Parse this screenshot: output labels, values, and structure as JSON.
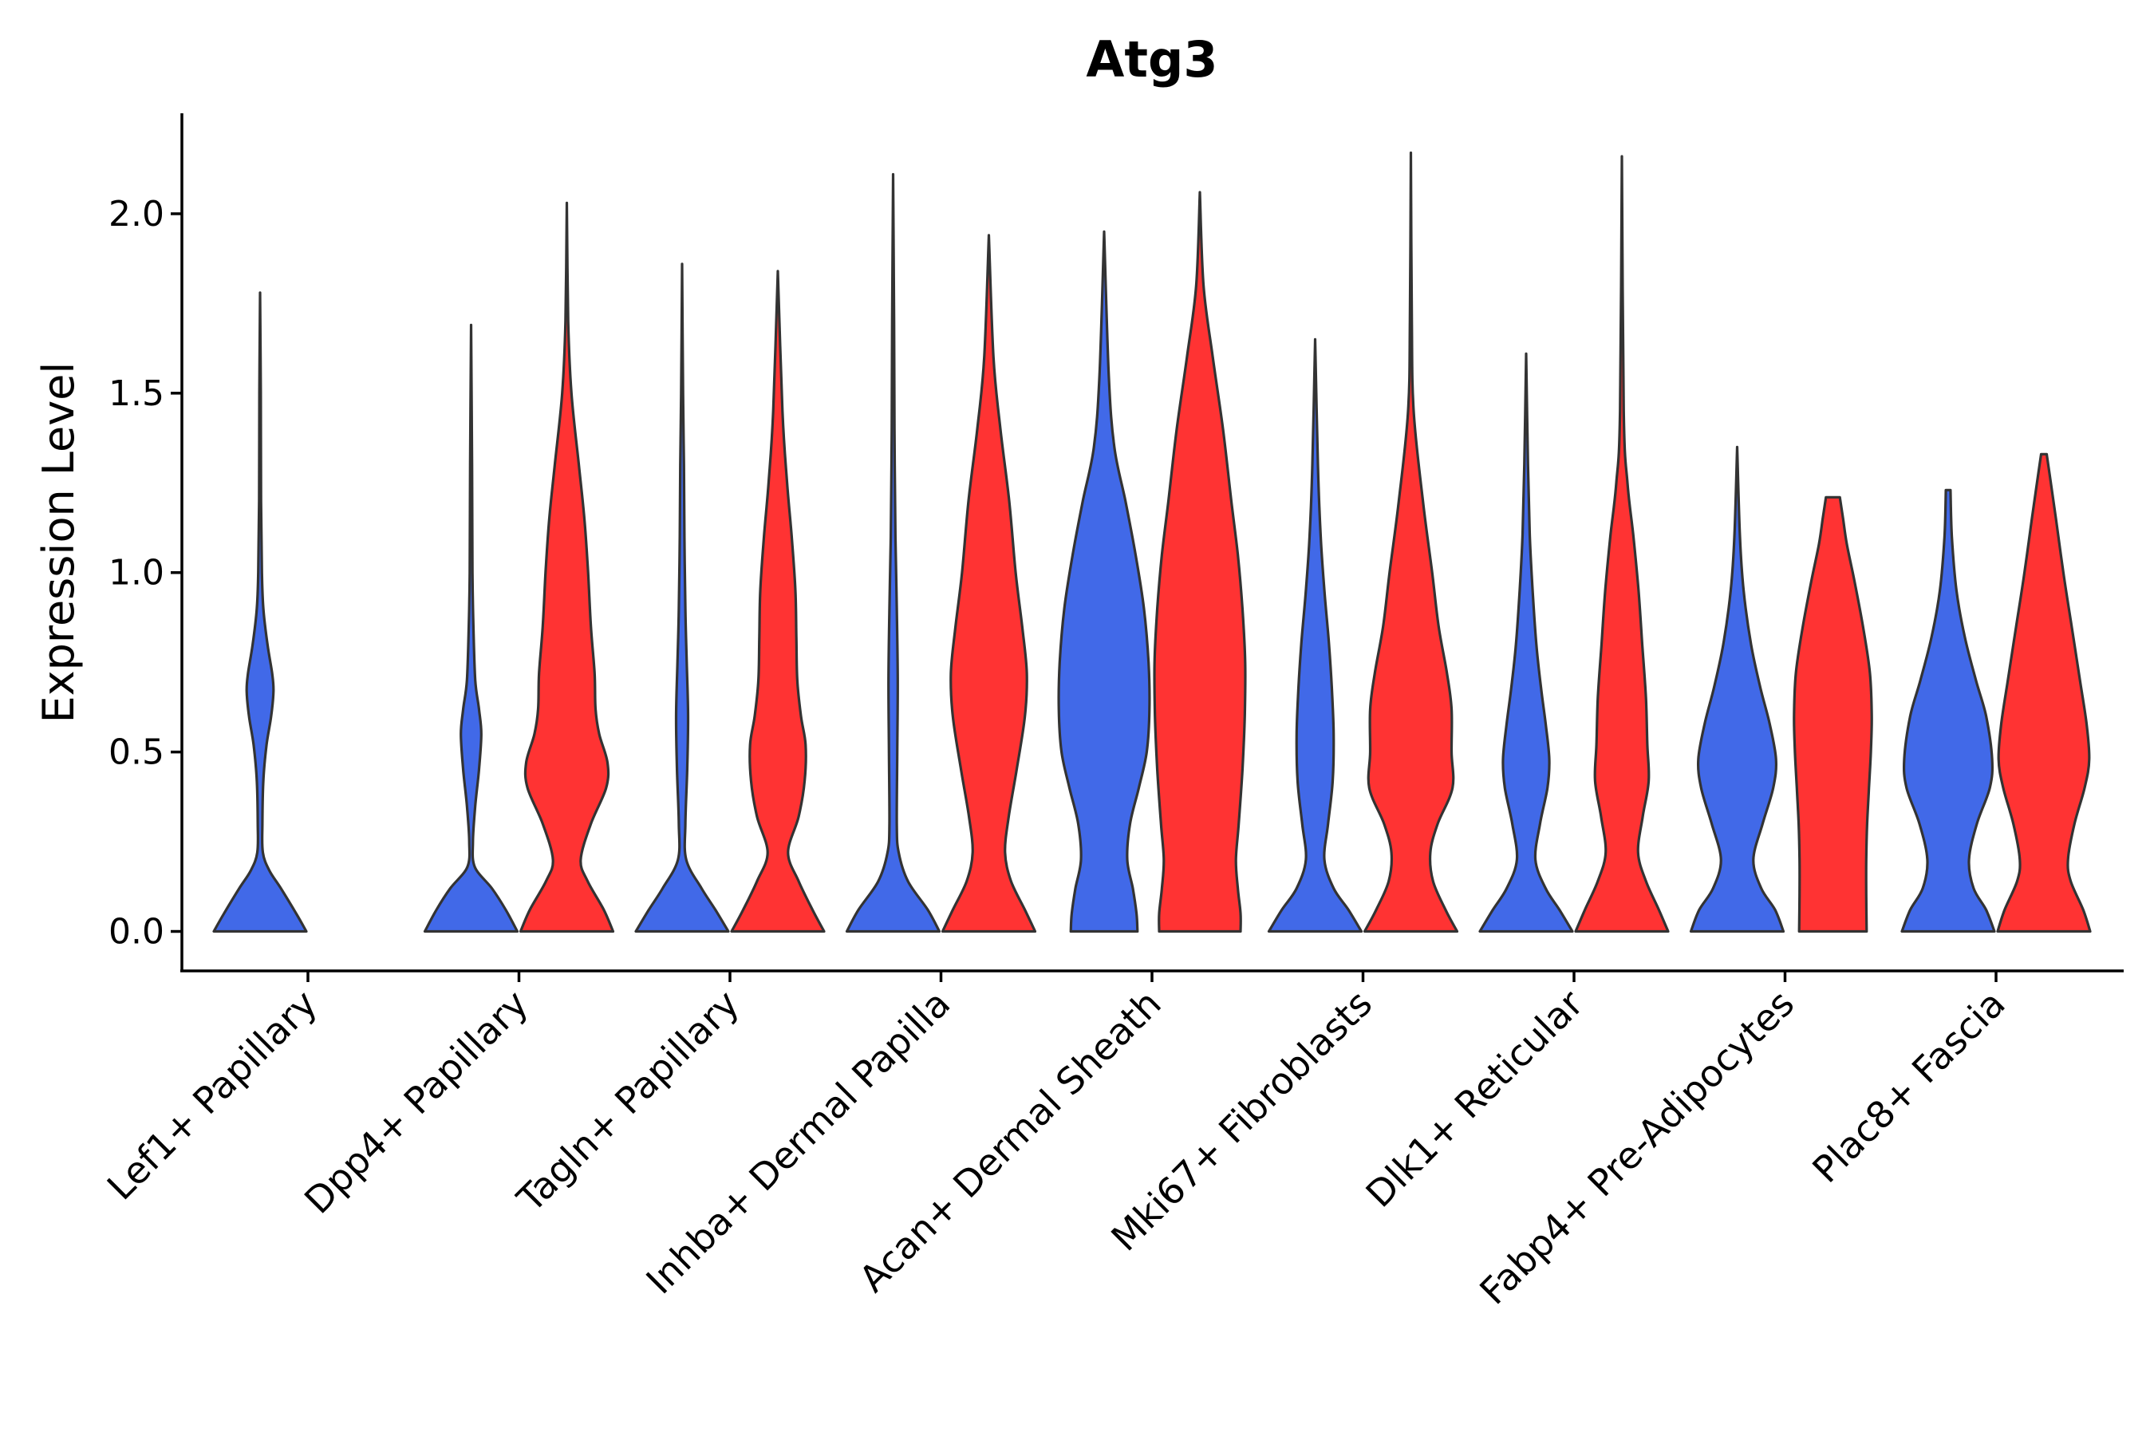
{
  "chart_data": {
    "type": "violin",
    "title": "Atg3",
    "xlabel": "",
    "ylabel": "Expression Level",
    "ylim": [
      -0.11,
      2.28
    ],
    "yticks": [
      0.0,
      0.5,
      1.0,
      1.5,
      2.0
    ],
    "ytick_labels": [
      "0.0",
      "0.5",
      "1.0",
      "1.5",
      "2.0"
    ],
    "grid": false,
    "legend": "none",
    "groups": [
      {
        "name": "group 1",
        "color": "#4169E8"
      },
      {
        "name": "group 2",
        "color": "#FF3333"
      }
    ],
    "categories": [
      "Lef1+ Papillary",
      "Dpp4+ Papillary",
      "Tagln+ Papillary",
      "Inhba+ Dermal Papilla",
      "Acan+ Dermal Sheath",
      "Mki67+ Fibroblasts",
      "Dlk1+ Reticular",
      "Fabp4+ Pre-Adipocytes",
      "Plac8+ Fascia"
    ],
    "violins": [
      {
        "category": "Lef1+ Papillary",
        "group": "group 1",
        "max": 1.78,
        "profile": [
          [
            0.0,
            1.0
          ],
          [
            0.05,
            0.78
          ],
          [
            0.12,
            0.45
          ],
          [
            0.17,
            0.2
          ],
          [
            0.22,
            0.06
          ],
          [
            0.3,
            0.05
          ],
          [
            0.42,
            0.07
          ],
          [
            0.52,
            0.14
          ],
          [
            0.6,
            0.24
          ],
          [
            0.67,
            0.29
          ],
          [
            0.72,
            0.26
          ],
          [
            0.8,
            0.16
          ],
          [
            0.9,
            0.07
          ],
          [
            1.0,
            0.04
          ],
          [
            1.2,
            0.02
          ],
          [
            1.5,
            0.015
          ],
          [
            1.78,
            0.0
          ]
        ]
      },
      {
        "category": "Dpp4+ Papillary",
        "group": "group 1",
        "max": 1.69,
        "profile": [
          [
            0.0,
            1.0
          ],
          [
            0.06,
            0.75
          ],
          [
            0.12,
            0.45
          ],
          [
            0.18,
            0.08
          ],
          [
            0.25,
            0.04
          ],
          [
            0.35,
            0.09
          ],
          [
            0.45,
            0.17
          ],
          [
            0.55,
            0.22
          ],
          [
            0.62,
            0.17
          ],
          [
            0.7,
            0.09
          ],
          [
            0.85,
            0.05
          ],
          [
            1.0,
            0.03
          ],
          [
            1.3,
            0.02
          ],
          [
            1.69,
            0.0
          ]
        ]
      },
      {
        "category": "Dpp4+ Papillary",
        "group": "group 2",
        "max": 2.03,
        "profile": [
          [
            0.0,
            1.0
          ],
          [
            0.06,
            0.8
          ],
          [
            0.14,
            0.45
          ],
          [
            0.2,
            0.3
          ],
          [
            0.3,
            0.52
          ],
          [
            0.4,
            0.85
          ],
          [
            0.47,
            0.88
          ],
          [
            0.55,
            0.7
          ],
          [
            0.62,
            0.62
          ],
          [
            0.72,
            0.6
          ],
          [
            0.85,
            0.52
          ],
          [
            1.0,
            0.46
          ],
          [
            1.15,
            0.38
          ],
          [
            1.3,
            0.26
          ],
          [
            1.5,
            0.1
          ],
          [
            1.7,
            0.03
          ],
          [
            2.03,
            0.0
          ]
        ]
      },
      {
        "category": "Tagln+ Papillary",
        "group": "group 1",
        "max": 1.86,
        "profile": [
          [
            0.0,
            1.0
          ],
          [
            0.06,
            0.72
          ],
          [
            0.12,
            0.42
          ],
          [
            0.2,
            0.09
          ],
          [
            0.3,
            0.07
          ],
          [
            0.45,
            0.11
          ],
          [
            0.6,
            0.13
          ],
          [
            0.75,
            0.1
          ],
          [
            0.9,
            0.07
          ],
          [
            1.1,
            0.05
          ],
          [
            1.3,
            0.04
          ],
          [
            1.5,
            0.02
          ],
          [
            1.86,
            0.0
          ]
        ]
      },
      {
        "category": "Tagln+ Papillary",
        "group": "group 2",
        "max": 1.84,
        "profile": [
          [
            0.0,
            1.0
          ],
          [
            0.06,
            0.75
          ],
          [
            0.14,
            0.45
          ],
          [
            0.22,
            0.22
          ],
          [
            0.32,
            0.45
          ],
          [
            0.42,
            0.58
          ],
          [
            0.52,
            0.6
          ],
          [
            0.6,
            0.5
          ],
          [
            0.7,
            0.42
          ],
          [
            0.82,
            0.4
          ],
          [
            0.95,
            0.38
          ],
          [
            1.1,
            0.3
          ],
          [
            1.25,
            0.2
          ],
          [
            1.45,
            0.1
          ],
          [
            1.84,
            0.0
          ]
        ]
      },
      {
        "category": "Inhba+ Dermal Papilla",
        "group": "group 1",
        "max": 2.11,
        "profile": [
          [
            0.0,
            1.0
          ],
          [
            0.06,
            0.75
          ],
          [
            0.14,
            0.32
          ],
          [
            0.22,
            0.12
          ],
          [
            0.3,
            0.08
          ],
          [
            0.5,
            0.09
          ],
          [
            0.7,
            0.1
          ],
          [
            0.9,
            0.08
          ],
          [
            1.1,
            0.05
          ],
          [
            1.4,
            0.03
          ],
          [
            1.7,
            0.02
          ],
          [
            2.11,
            0.0
          ]
        ]
      },
      {
        "category": "Inhba+ Dermal Papilla",
        "group": "group 2",
        "max": 1.94,
        "profile": [
          [
            0.0,
            1.0
          ],
          [
            0.06,
            0.78
          ],
          [
            0.14,
            0.48
          ],
          [
            0.22,
            0.35
          ],
          [
            0.32,
            0.43
          ],
          [
            0.45,
            0.6
          ],
          [
            0.6,
            0.78
          ],
          [
            0.72,
            0.82
          ],
          [
            0.85,
            0.72
          ],
          [
            1.0,
            0.58
          ],
          [
            1.2,
            0.44
          ],
          [
            1.4,
            0.25
          ],
          [
            1.6,
            0.1
          ],
          [
            1.94,
            0.0
          ]
        ]
      },
      {
        "category": "Acan+ Dermal Sheath",
        "group": "group 1",
        "max": 1.95,
        "profile": [
          [
            0.0,
            0.72
          ],
          [
            0.05,
            0.7
          ],
          [
            0.12,
            0.62
          ],
          [
            0.2,
            0.5
          ],
          [
            0.3,
            0.56
          ],
          [
            0.4,
            0.75
          ],
          [
            0.5,
            0.92
          ],
          [
            0.62,
            0.98
          ],
          [
            0.75,
            0.96
          ],
          [
            0.9,
            0.86
          ],
          [
            1.05,
            0.68
          ],
          [
            1.2,
            0.46
          ],
          [
            1.35,
            0.22
          ],
          [
            1.55,
            0.1
          ],
          [
            1.95,
            0.0
          ]
        ]
      },
      {
        "category": "Acan+ Dermal Sheath",
        "group": "group 2",
        "max": 2.06,
        "profile": [
          [
            0.0,
            0.88
          ],
          [
            0.05,
            0.88
          ],
          [
            0.12,
            0.82
          ],
          [
            0.2,
            0.78
          ],
          [
            0.3,
            0.84
          ],
          [
            0.45,
            0.92
          ],
          [
            0.6,
            0.97
          ],
          [
            0.75,
            0.98
          ],
          [
            0.9,
            0.92
          ],
          [
            1.05,
            0.82
          ],
          [
            1.2,
            0.68
          ],
          [
            1.4,
            0.5
          ],
          [
            1.6,
            0.28
          ],
          [
            1.8,
            0.08
          ],
          [
            2.06,
            0.0
          ]
        ]
      },
      {
        "category": "Mki67+ Fibroblasts",
        "group": "group 1",
        "max": 1.65,
        "profile": [
          [
            0.0,
            1.0
          ],
          [
            0.06,
            0.72
          ],
          [
            0.12,
            0.4
          ],
          [
            0.2,
            0.2
          ],
          [
            0.3,
            0.28
          ],
          [
            0.42,
            0.38
          ],
          [
            0.55,
            0.4
          ],
          [
            0.68,
            0.36
          ],
          [
            0.8,
            0.3
          ],
          [
            0.95,
            0.2
          ],
          [
            1.1,
            0.12
          ],
          [
            1.3,
            0.06
          ],
          [
            1.65,
            0.0
          ]
        ]
      },
      {
        "category": "Mki67+ Fibroblasts",
        "group": "group 2",
        "max": 2.17,
        "profile": [
          [
            0.0,
            1.0
          ],
          [
            0.06,
            0.75
          ],
          [
            0.14,
            0.48
          ],
          [
            0.22,
            0.42
          ],
          [
            0.3,
            0.58
          ],
          [
            0.4,
            0.9
          ],
          [
            0.5,
            0.88
          ],
          [
            0.62,
            0.88
          ],
          [
            0.72,
            0.78
          ],
          [
            0.85,
            0.6
          ],
          [
            1.0,
            0.46
          ],
          [
            1.2,
            0.26
          ],
          [
            1.45,
            0.06
          ],
          [
            1.7,
            0.02
          ],
          [
            2.17,
            0.0
          ]
        ]
      },
      {
        "category": "Dlk1+ Reticular",
        "group": "group 1",
        "max": 1.61,
        "profile": [
          [
            0.0,
            1.0
          ],
          [
            0.06,
            0.72
          ],
          [
            0.12,
            0.42
          ],
          [
            0.2,
            0.2
          ],
          [
            0.3,
            0.3
          ],
          [
            0.4,
            0.46
          ],
          [
            0.48,
            0.5
          ],
          [
            0.58,
            0.42
          ],
          [
            0.68,
            0.32
          ],
          [
            0.8,
            0.22
          ],
          [
            0.95,
            0.14
          ],
          [
            1.1,
            0.08
          ],
          [
            1.3,
            0.04
          ],
          [
            1.61,
            0.0
          ]
        ]
      },
      {
        "category": "Dlk1+ Reticular",
        "group": "group 2",
        "max": 2.16,
        "profile": [
          [
            0.0,
            1.0
          ],
          [
            0.06,
            0.8
          ],
          [
            0.14,
            0.52
          ],
          [
            0.22,
            0.35
          ],
          [
            0.32,
            0.45
          ],
          [
            0.42,
            0.58
          ],
          [
            0.52,
            0.55
          ],
          [
            0.65,
            0.52
          ],
          [
            0.8,
            0.44
          ],
          [
            0.95,
            0.36
          ],
          [
            1.1,
            0.25
          ],
          [
            1.25,
            0.12
          ],
          [
            1.45,
            0.04
          ],
          [
            2.16,
            0.0
          ]
        ]
      },
      {
        "category": "Fabp4+ Pre-Adipocytes",
        "group": "group 1",
        "max": 1.35,
        "profile": [
          [
            0.0,
            1.0
          ],
          [
            0.06,
            0.82
          ],
          [
            0.12,
            0.52
          ],
          [
            0.2,
            0.35
          ],
          [
            0.3,
            0.55
          ],
          [
            0.4,
            0.78
          ],
          [
            0.48,
            0.84
          ],
          [
            0.58,
            0.7
          ],
          [
            0.68,
            0.5
          ],
          [
            0.8,
            0.3
          ],
          [
            0.95,
            0.14
          ],
          [
            1.1,
            0.06
          ],
          [
            1.35,
            0.0
          ]
        ]
      },
      {
        "category": "Fabp4+ Pre-Adipocytes",
        "group": "group 2",
        "max": 1.21,
        "profile": [
          [
            0.0,
            0.73
          ],
          [
            0.1,
            0.72
          ],
          [
            0.2,
            0.72
          ],
          [
            0.3,
            0.74
          ],
          [
            0.4,
            0.78
          ],
          [
            0.5,
            0.82
          ],
          [
            0.6,
            0.84
          ],
          [
            0.72,
            0.8
          ],
          [
            0.85,
            0.65
          ],
          [
            0.98,
            0.46
          ],
          [
            1.08,
            0.3
          ],
          [
            1.15,
            0.22
          ],
          [
            1.21,
            0.15
          ]
        ]
      },
      {
        "category": "Plac8+ Fascia",
        "group": "group 1",
        "max": 1.23,
        "profile": [
          [
            0.0,
            1.0
          ],
          [
            0.06,
            0.82
          ],
          [
            0.12,
            0.55
          ],
          [
            0.2,
            0.45
          ],
          [
            0.3,
            0.62
          ],
          [
            0.4,
            0.9
          ],
          [
            0.48,
            0.95
          ],
          [
            0.6,
            0.82
          ],
          [
            0.7,
            0.6
          ],
          [
            0.82,
            0.36
          ],
          [
            0.95,
            0.18
          ],
          [
            1.1,
            0.08
          ],
          [
            1.23,
            0.05
          ]
        ]
      },
      {
        "category": "Plac8+ Fascia",
        "group": "group 2",
        "max": 1.33,
        "profile": [
          [
            0.0,
            1.0
          ],
          [
            0.06,
            0.85
          ],
          [
            0.14,
            0.58
          ],
          [
            0.2,
            0.52
          ],
          [
            0.3,
            0.66
          ],
          [
            0.4,
            0.88
          ],
          [
            0.48,
            0.98
          ],
          [
            0.58,
            0.92
          ],
          [
            0.7,
            0.78
          ],
          [
            0.85,
            0.6
          ],
          [
            1.0,
            0.42
          ],
          [
            1.15,
            0.26
          ],
          [
            1.25,
            0.15
          ],
          [
            1.33,
            0.06
          ]
        ]
      }
    ]
  }
}
